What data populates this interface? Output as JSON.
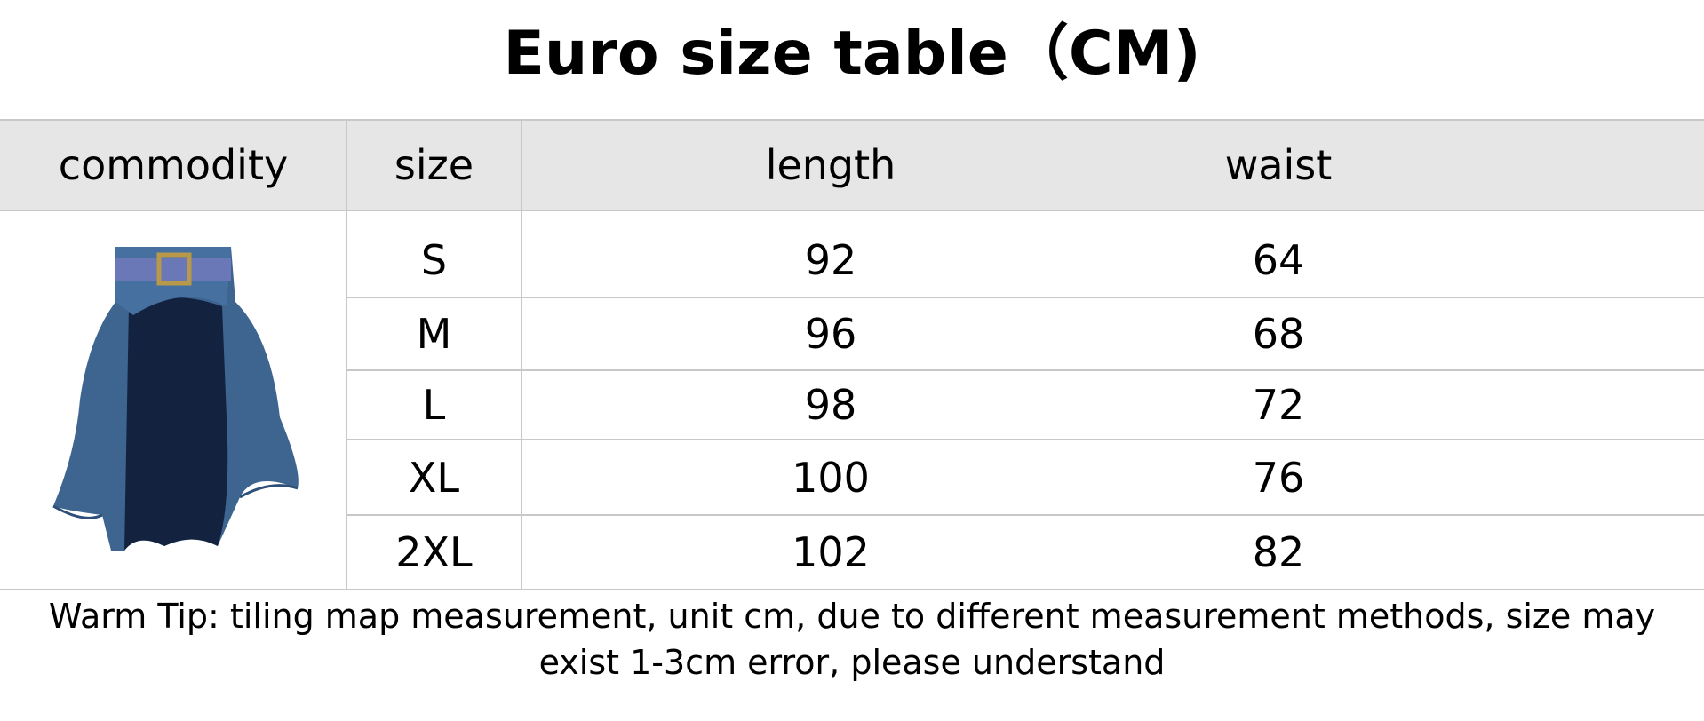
{
  "title": "Euro size table（CM)",
  "headers": [
    "commodity",
    "size",
    "length",
    "waist"
  ],
  "rows": [
    {
      "size": "S",
      "length": "92",
      "waist": "64"
    },
    {
      "size": "M",
      "length": "96",
      "waist": "68"
    },
    {
      "size": "L",
      "length": "98",
      "waist": "72"
    },
    {
      "size": "XL",
      "length": "100",
      "waist": "76"
    },
    {
      "size": "2XL",
      "length": "102",
      "waist": "82"
    }
  ],
  "tip": "Warm Tip: tiling map measurement, unit cm, due to different measurement methods, size may exist 1-3cm error, please understand",
  "colors": {
    "header_bg": "#e6e6e6",
    "skirt": "#3e6590",
    "skirt_inner": "#13233f"
  }
}
